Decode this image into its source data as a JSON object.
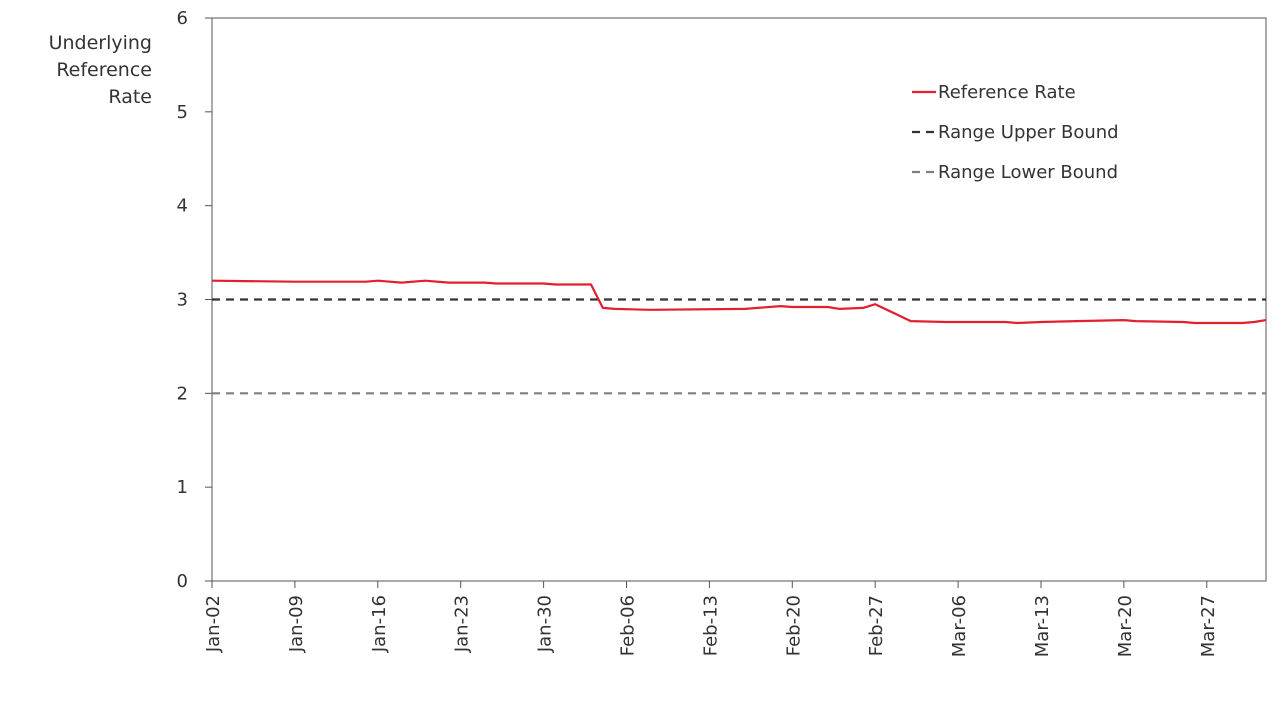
{
  "chart_data": {
    "type": "line",
    "ylabel_lines": [
      "Underlying",
      "Reference",
      "Rate"
    ],
    "ylim": [
      0,
      6
    ],
    "yticks": [
      0,
      1,
      2,
      3,
      4,
      5,
      6
    ],
    "xlim": [
      "Jan-02",
      "Apr-01"
    ],
    "xticks": [
      "Jan-02",
      "Jan-09",
      "Jan-16",
      "Jan-23",
      "Jan-30",
      "Feb-06",
      "Feb-13",
      "Feb-20",
      "Feb-27",
      "Mar-06",
      "Mar-13",
      "Mar-20",
      "Mar-27"
    ],
    "grid": false,
    "legend_position": "top-right",
    "series": [
      {
        "name": "Reference Rate",
        "style": "solid",
        "color": "#e0202f",
        "points": [
          [
            "Jan-02",
            3.2
          ],
          [
            "Jan-09",
            3.19
          ],
          [
            "Jan-15",
            3.19
          ],
          [
            "Jan-16",
            3.2
          ],
          [
            "Jan-18",
            3.18
          ],
          [
            "Jan-20",
            3.2
          ],
          [
            "Jan-22",
            3.18
          ],
          [
            "Jan-25",
            3.18
          ],
          [
            "Jan-26",
            3.17
          ],
          [
            "Jan-30",
            3.17
          ],
          [
            "Jan-31",
            3.16
          ],
          [
            "Feb-03",
            3.16
          ],
          [
            "Feb-04",
            2.91
          ],
          [
            "Feb-05",
            2.9
          ],
          [
            "Feb-08",
            2.89
          ],
          [
            "Feb-16",
            2.9
          ],
          [
            "Feb-19",
            2.93
          ],
          [
            "Feb-20",
            2.92
          ],
          [
            "Feb-23",
            2.92
          ],
          [
            "Feb-24",
            2.9
          ],
          [
            "Feb-26",
            2.91
          ],
          [
            "Feb-27",
            2.95
          ],
          [
            "Mar-02",
            2.77
          ],
          [
            "Mar-05",
            2.76
          ],
          [
            "Mar-10",
            2.76
          ],
          [
            "Mar-11",
            2.75
          ],
          [
            "Mar-13",
            2.76
          ],
          [
            "Mar-16",
            2.77
          ],
          [
            "Mar-20",
            2.78
          ],
          [
            "Mar-21",
            2.77
          ],
          [
            "Mar-25",
            2.76
          ],
          [
            "Mar-26",
            2.75
          ],
          [
            "Mar-30",
            2.75
          ],
          [
            "Mar-31",
            2.76
          ],
          [
            "Apr-01",
            2.78
          ]
        ]
      },
      {
        "name": "Range Upper Bound",
        "style": "dashed",
        "color": "#333333",
        "points": [
          [
            "Jan-02",
            3.0
          ],
          [
            "Apr-01",
            3.0
          ]
        ]
      },
      {
        "name": "Range Lower Bound",
        "style": "dashed",
        "color": "#808080",
        "points": [
          [
            "Jan-02",
            2.0
          ],
          [
            "Apr-01",
            2.0
          ]
        ]
      }
    ]
  }
}
